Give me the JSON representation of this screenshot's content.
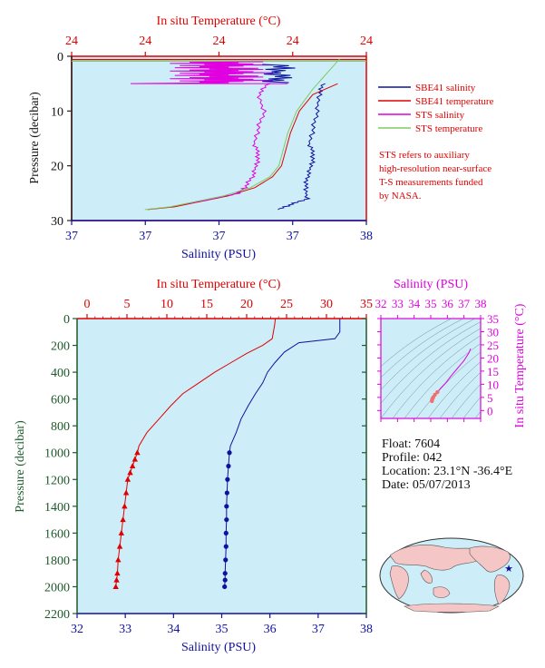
{
  "colors": {
    "plot_bg": "#cdeef8",
    "red": "#e00000",
    "blue": "#1010a0",
    "magenta": "#e000e0",
    "green": "#7ecb60",
    "dark_green": "#1d5a2a",
    "map_land": "#f4c6c6",
    "map_sea": "#cdeef8"
  },
  "top_panel": {
    "xlabel_top": "In situ Temperature (°C)",
    "xlabel_bottom": "Salinity (PSU)",
    "ylabel": "Pressure (decibar)",
    "top_ticks": [
      "24",
      "24",
      "24",
      "24",
      "24"
    ],
    "bottom_ticks": [
      "37",
      "37",
      "37",
      "37",
      "38"
    ],
    "y_ticks": [
      "0",
      "10",
      "20",
      "30"
    ],
    "legend": [
      {
        "label": "SBE41 salinity",
        "color": "#1010a0"
      },
      {
        "label": "SBE41 temperature",
        "color": "#e00000"
      },
      {
        "label": "STS salinity",
        "color": "#e000e0"
      },
      {
        "label": "STS temperature",
        "color": "#7ecb60"
      }
    ],
    "note": [
      "STS refers to auxiliary",
      "high-resolution near-surface",
      "T-S measurements funded",
      "by NASA."
    ]
  },
  "bottom_panel": {
    "xlabel_top": "In situ Temperature (°C)",
    "xlabel_bottom": "Salinity (PSU)",
    "ylabel": "Pressure (decibar)",
    "top_ticks": [
      "0",
      "5",
      "10",
      "15",
      "20",
      "25",
      "30",
      "35"
    ],
    "bottom_ticks": [
      "32",
      "33",
      "34",
      "35",
      "36",
      "37",
      "38"
    ],
    "y_ticks": [
      "0",
      "200",
      "400",
      "600",
      "800",
      "1000",
      "1200",
      "1400",
      "1600",
      "1800",
      "2000",
      "2200"
    ]
  },
  "ts_panel": {
    "xlabel": "Salinity (PSU)",
    "ylabel": "In situ Temperature (°C)",
    "x_ticks": [
      "32",
      "33",
      "34",
      "35",
      "36",
      "37",
      "38"
    ],
    "y_ticks": [
      "0",
      "5",
      "10",
      "15",
      "20",
      "25",
      "30",
      "35"
    ]
  },
  "info": {
    "float": "Float:  7604",
    "profile": "Profile:  042",
    "location": "Location:  23.1°N  -36.4°E",
    "date": "Date:  05/07/2013"
  },
  "chart_data": [
    {
      "type": "line",
      "panel": "top",
      "title": "",
      "xlabel": "Salinity (PSU)",
      "x2label": "In situ Temperature (°C)",
      "ylabel": "Pressure (decibar)",
      "ylim": [
        0,
        30
      ],
      "y_inverted": true,
      "series": [
        {
          "name": "SBE41 salinity",
          "axis": "salinity",
          "x": [
            37.78,
            37.76,
            37.75,
            37.73,
            37.71,
            37.73,
            37.72,
            37.7,
            37.69,
            37.7,
            37.62,
            37.55
          ],
          "y": [
            5,
            7,
            10,
            13,
            16,
            18,
            20,
            22,
            24,
            26,
            27,
            28
          ]
        },
        {
          "name": "SBE41 temperature",
          "axis": "temperature",
          "x": [
            24.98,
            24.7,
            24.55,
            24.45,
            24.4,
            24.35,
            24.25,
            24.05,
            23.75,
            23.45,
            23.15,
            22.85
          ],
          "y": [
            5,
            7,
            10,
            14,
            17,
            20,
            22,
            24,
            25.5,
            26.5,
            27.5,
            28
          ]
        },
        {
          "name": "STS salinity",
          "axis": "salinity",
          "x": [
            37.5,
            37.45,
            37.48,
            37.45,
            37.43,
            37.45,
            37.44,
            37.42,
            37.38,
            37.35,
            37.22,
            37.08
          ],
          "y": [
            5,
            7,
            10,
            13,
            16,
            18,
            20,
            22,
            24,
            25,
            26,
            27
          ]
        },
        {
          "name": "STS temperature",
          "axis": "temperature",
          "x": [
            25.0,
            24.7,
            24.52,
            24.42,
            24.37,
            24.32,
            24.22,
            24.0,
            23.7,
            23.4,
            23.1,
            22.82
          ],
          "y": [
            0.5,
            6,
            10,
            14,
            17,
            20,
            22,
            24,
            25.5,
            26.5,
            27.5,
            28
          ]
        }
      ]
    },
    {
      "type": "line",
      "panel": "bottom",
      "title": "",
      "xlabel": "Salinity (PSU)",
      "x2label": "In situ Temperature (°C)",
      "ylabel": "Pressure (decibar)",
      "xlim": [
        32,
        38
      ],
      "x2lim": [
        0,
        35
      ],
      "ylim": [
        0,
        2200
      ],
      "y_inverted": true,
      "series": [
        {
          "name": "temperature",
          "axis": "temperature",
          "x": [
            23.6,
            23.5,
            23.2,
            22.0,
            20.0,
            18.0,
            16.0,
            14.0,
            12.0,
            10.5,
            9.0,
            7.5,
            6.5,
            6.3,
            6.0,
            5.7,
            5.4,
            5.1,
            4.9,
            4.7,
            4.5,
            4.3,
            4.1,
            3.9,
            3.8,
            3.7,
            3.6
          ],
          "y": [
            0,
            50,
            150,
            200,
            260,
            330,
            400,
            480,
            560,
            650,
            750,
            850,
            950,
            1000,
            1050,
            1100,
            1150,
            1200,
            1300,
            1400,
            1500,
            1600,
            1700,
            1800,
            1900,
            1950,
            2000
          ]
        },
        {
          "name": "salinity",
          "axis": "salinity",
          "x": [
            37.45,
            37.45,
            37.35,
            36.6,
            36.3,
            36.1,
            35.95,
            35.85,
            35.7,
            35.55,
            35.4,
            35.3,
            35.18,
            35.16,
            35.14,
            35.12,
            35.11,
            35.1,
            35.1,
            35.09,
            35.09,
            35.08,
            35.07,
            35.07,
            35.06
          ],
          "y": [
            0,
            100,
            150,
            180,
            250,
            330,
            400,
            480,
            560,
            650,
            750,
            850,
            950,
            1000,
            1100,
            1200,
            1300,
            1400,
            1500,
            1600,
            1700,
            1800,
            1900,
            1950,
            2000
          ]
        }
      ]
    },
    {
      "type": "scatter",
      "panel": "ts",
      "title": "",
      "xlabel": "Salinity (PSU)",
      "ylabel": "In situ Temperature (°C)",
      "xlim": [
        32,
        38
      ],
      "ylim": [
        -3,
        35
      ],
      "series": [
        {
          "name": "T-S",
          "x": [
            37.4,
            37.3,
            37.0,
            36.6,
            36.2,
            35.9,
            35.6,
            35.4,
            35.25,
            35.15,
            35.1,
            35.08,
            35.07
          ],
          "y": [
            23.6,
            22.0,
            19.0,
            16.0,
            13.0,
            10.5,
            8.5,
            7.0,
            6.0,
            5.0,
            4.5,
            4.0,
            3.6
          ]
        }
      ]
    }
  ]
}
